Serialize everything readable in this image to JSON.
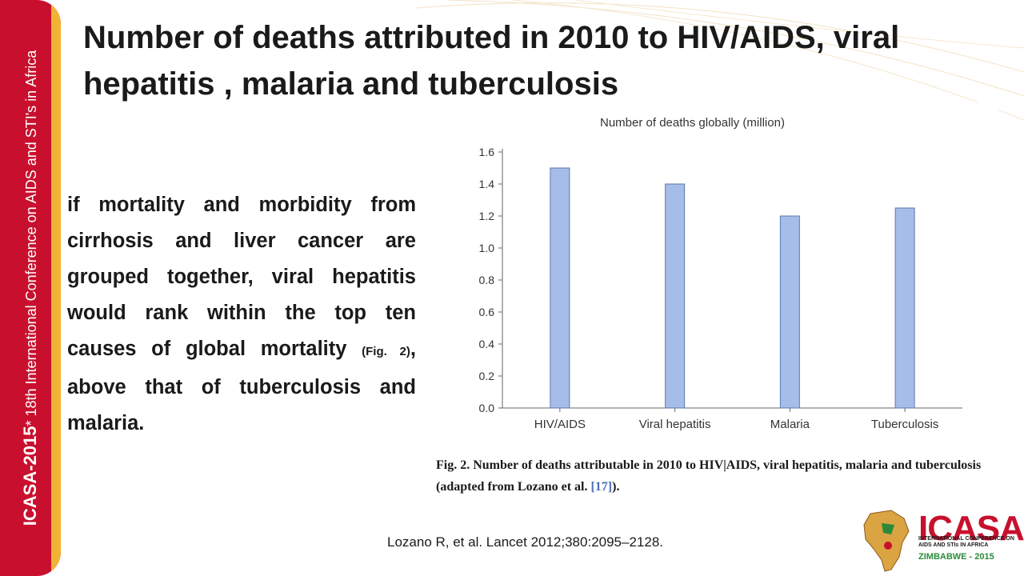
{
  "sidebar": {
    "brand": "ICASA-2015",
    "star": "*",
    "tagline": " 18th International Conference on AIDS and STI's in Africa"
  },
  "slide": {
    "title": "Number of deaths attributed in 2010 to HIV/AIDS, viral hepatitis , malaria and tuberculosis",
    "body": {
      "main": "if mortality and morbidity from cirrhosis and liver cancer are grouped together, viral hepatitis would rank within the top ten causes of global mortality ",
      "fig_ref": "(Fig. 2)",
      "end": ", above that of tuberculosis and malaria."
    },
    "citation": "Lozano R, et al. Lancet 2012;380:2095–2128."
  },
  "figure": {
    "caption_main": "Fig. 2. Number of deaths attributable in 2010 to HIV|AIDS, viral hepatitis, malaria and tuberculosis (adapted from Lozano et al. ",
    "caption_ref": "[17]",
    "caption_end": ")."
  },
  "chart_data": {
    "type": "bar",
    "title": "Number of deaths globally (million)",
    "categories": [
      "HIV/AIDS",
      "Viral hepatitis",
      "Malaria",
      "Tuberculosis"
    ],
    "values": [
      1.5,
      1.4,
      1.2,
      1.25
    ],
    "ylim": [
      0,
      1.6
    ],
    "yticks": [
      "0.0",
      "0.2",
      "0.4",
      "0.6",
      "0.8",
      "1.0",
      "1.2",
      "1.4",
      "1.6"
    ],
    "grid": false,
    "bar_color": "#a6bde8",
    "bar_edge_color": "#5b77b5"
  },
  "logo": {
    "title": "ICASA",
    "subtitle": "INTERNATIONAL CONFERENCE ON AIDS AND STIs IN AFRICA",
    "country": "ZIMBABWE - 2015"
  }
}
